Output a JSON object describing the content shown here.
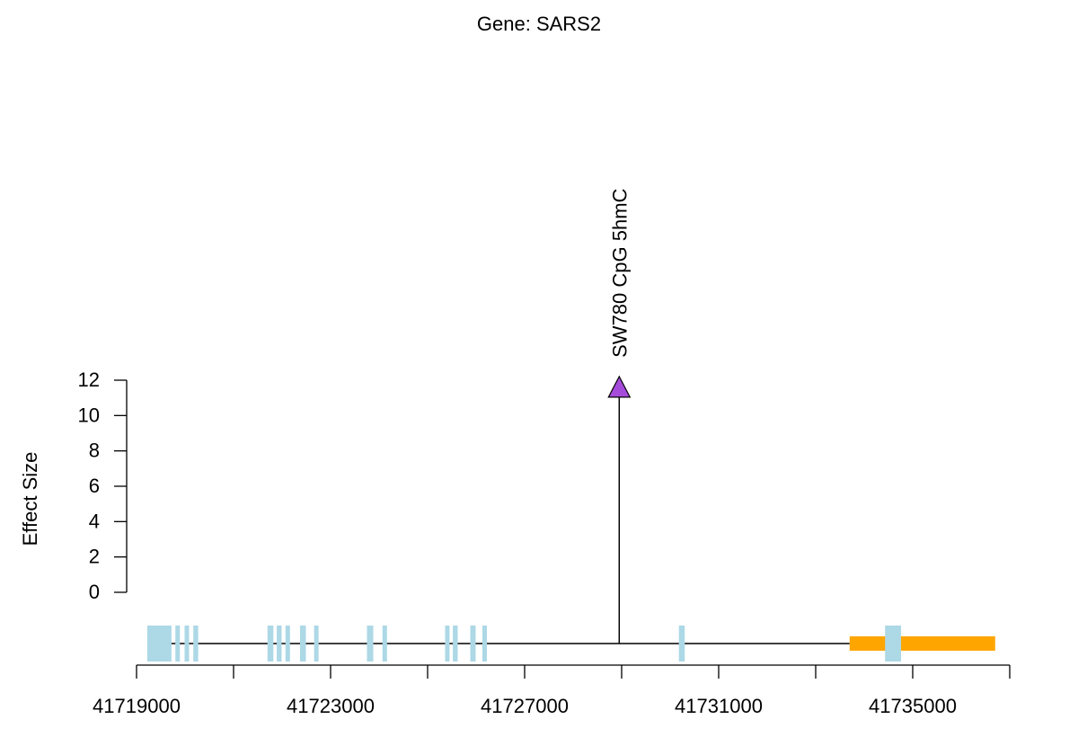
{
  "chart_data": {
    "type": "lollipop",
    "title": "Gene: SARS2",
    "ylabel": "Effect Size",
    "xlabel": "",
    "y_ticks": [
      0,
      2,
      4,
      6,
      8,
      10,
      12
    ],
    "ylim": [
      0,
      12
    ],
    "x_ticks": [
      41719000,
      41721000,
      41723000,
      41725000,
      41727000,
      41729000,
      41731000,
      41733000,
      41735000,
      41737000
    ],
    "x_tick_labels": [
      {
        "value": 41719000,
        "label": "41719000"
      },
      {
        "value": 41723000,
        "label": "41723000"
      },
      {
        "value": 41727000,
        "label": "41727000"
      },
      {
        "value": 41731000,
        "label": "41731000"
      },
      {
        "value": 41735000,
        "label": "41735000"
      }
    ],
    "xlim": [
      41719000,
      41737000
    ],
    "gene": {
      "start": 41719400,
      "end": 41733700,
      "exons": [
        [
          41719220,
          41719720
        ],
        [
          41719800,
          41719880
        ],
        [
          41719990,
          41720070
        ],
        [
          41720170,
          41720270
        ],
        [
          41721700,
          41721820
        ],
        [
          41721890,
          41721990
        ],
        [
          41722070,
          41722140
        ],
        [
          41722370,
          41722490
        ],
        [
          41722660,
          41722730
        ],
        [
          41723750,
          41723880
        ],
        [
          41724070,
          41724140
        ],
        [
          41725360,
          41725430
        ],
        [
          41725520,
          41725620
        ],
        [
          41725880,
          41725990
        ],
        [
          41726130,
          41726200
        ],
        [
          41730180,
          41730300
        ],
        [
          41734430,
          41734760
        ]
      ]
    },
    "region_bar": {
      "start": 41733700,
      "end": 41736700,
      "color": "#FFA500"
    },
    "points": [
      {
        "x": 41728950,
        "y": 11.6,
        "label": "SW780 CpG 5hmC",
        "color": "#A64CDB",
        "shape": "triangle"
      }
    ],
    "colors": {
      "exon": "#ADD8E6",
      "line": "#000000"
    }
  }
}
